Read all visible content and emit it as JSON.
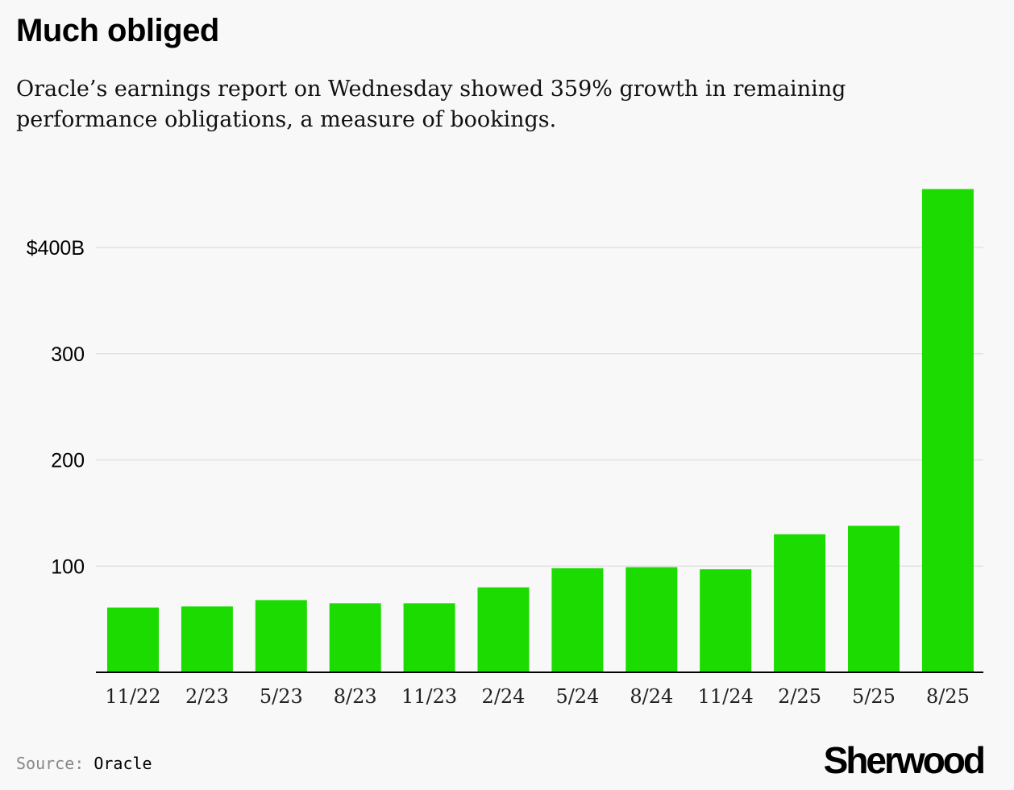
{
  "header": {
    "title": "Much obliged",
    "subtitle": "Oracle’s earnings report on Wednesday showed 359% growth in remaining performance obligations, a measure of bookings."
  },
  "footer": {
    "source_label": "Source:",
    "source_value": "Oracle",
    "brand": "Sherwood"
  },
  "colors": {
    "bar": "#1cdb00",
    "gridline": "#e2e2e2",
    "baseline": "#000000",
    "background": "#f8f8f8"
  },
  "chart_data": {
    "type": "bar",
    "title": "Much obliged",
    "xlabel": "",
    "ylabel": "",
    "ylim": [
      0,
      460
    ],
    "grid": true,
    "yticks": [
      100,
      200,
      300,
      400
    ],
    "ytick_labels": [
      "100",
      "200",
      "300",
      "$400B"
    ],
    "categories": [
      "11/22",
      "2/23",
      "5/23",
      "8/23",
      "11/23",
      "2/24",
      "5/24",
      "8/24",
      "11/24",
      "2/25",
      "5/25",
      "8/25"
    ],
    "values": [
      61,
      62,
      68,
      65,
      65,
      80,
      98,
      99,
      97,
      130,
      138,
      455
    ]
  }
}
